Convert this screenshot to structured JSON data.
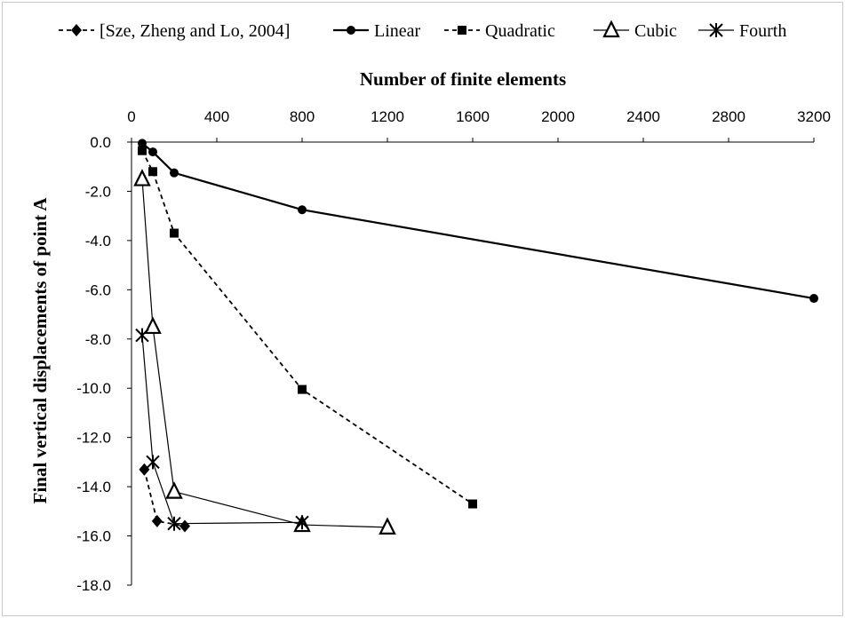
{
  "chart_data": {
    "type": "line",
    "xlabel": "Number  of finite  elements",
    "ylabel": "Final vertical displacements  of point  A",
    "xlim": [
      0,
      3200
    ],
    "ylim": [
      -18,
      0
    ],
    "x_axis_position": "top",
    "x_ticks": [
      "0",
      "400",
      "800",
      "1200",
      "1600",
      "2000",
      "2400",
      "2800",
      "3200"
    ],
    "y_ticks": [
      "0.0",
      "-2.0",
      "-4.0",
      "-6.0",
      "-8.0",
      "-10.0",
      "-12.0",
      "-14.0",
      "-16.0",
      "-18.0"
    ],
    "grid": false,
    "legend_position": "top",
    "series": [
      {
        "name": "[Sze, Zheng and Lo, 2004]",
        "marker": "diamond",
        "line": "dashed",
        "points": [
          [
            60,
            -13.3
          ],
          [
            120,
            -15.4
          ],
          [
            250,
            -15.6
          ]
        ]
      },
      {
        "name": "Linear",
        "marker": "circle",
        "line": "solid-thick",
        "points": [
          [
            50,
            -0.05
          ],
          [
            100,
            -0.4
          ],
          [
            200,
            -1.25
          ],
          [
            800,
            -2.75
          ],
          [
            3200,
            -6.35
          ]
        ]
      },
      {
        "name": "Quadratic",
        "marker": "square",
        "line": "dashed",
        "points": [
          [
            50,
            -0.35
          ],
          [
            100,
            -1.2
          ],
          [
            200,
            -3.7
          ],
          [
            800,
            -10.05
          ],
          [
            1600,
            -14.7
          ]
        ]
      },
      {
        "name": "Cubic",
        "marker": "triangle-open",
        "line": "solid-thin",
        "points": [
          [
            50,
            -1.5
          ],
          [
            100,
            -7.5
          ],
          [
            200,
            -14.2
          ],
          [
            800,
            -15.55
          ],
          [
            1200,
            -15.65
          ]
        ]
      },
      {
        "name": "Fourth",
        "marker": "asterisk",
        "line": "solid-thin",
        "points": [
          [
            50,
            -7.85
          ],
          [
            100,
            -13.0
          ],
          [
            200,
            -15.5
          ],
          [
            800,
            -15.45
          ]
        ]
      }
    ]
  }
}
